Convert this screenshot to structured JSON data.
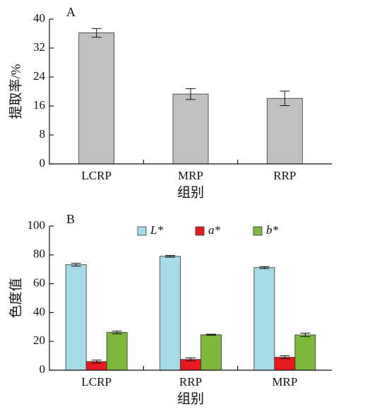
{
  "chart_data": [
    {
      "type": "bar",
      "panel_label": "A",
      "ylabel": "提取率/%",
      "xlabel": "组别",
      "categories": [
        "LCRP",
        "MRP",
        "RRP"
      ],
      "values": [
        36.2,
        19.3,
        18.1
      ],
      "errors": [
        1.2,
        1.5,
        2.0
      ],
      "color": "#c0c0c0",
      "ylim": [
        0,
        40
      ],
      "yticks": [
        0,
        8,
        16,
        24,
        32,
        40
      ]
    },
    {
      "type": "grouped_bar",
      "panel_label": "B",
      "ylabel": "色度值",
      "xlabel": "组别",
      "categories": [
        "LCRP",
        "RRP",
        "MRP"
      ],
      "series": [
        {
          "name": "L*",
          "color": "#a6dbe8",
          "values": [
            73.2,
            79.0,
            71.2
          ],
          "errors": [
            1.0,
            0.6,
            0.7
          ]
        },
        {
          "name": "a*",
          "color": "#e8191f",
          "values": [
            6.0,
            7.5,
            9.0
          ],
          "errors": [
            1.0,
            1.0,
            1.0
          ]
        },
        {
          "name": "b*",
          "color": "#7cb83a",
          "values": [
            26.2,
            24.6,
            24.5
          ],
          "errors": [
            0.9,
            0.4,
            1.2
          ]
        }
      ],
      "legend": "top",
      "ylim": [
        0,
        100
      ],
      "yticks": [
        0,
        20,
        40,
        60,
        80,
        100
      ]
    }
  ]
}
